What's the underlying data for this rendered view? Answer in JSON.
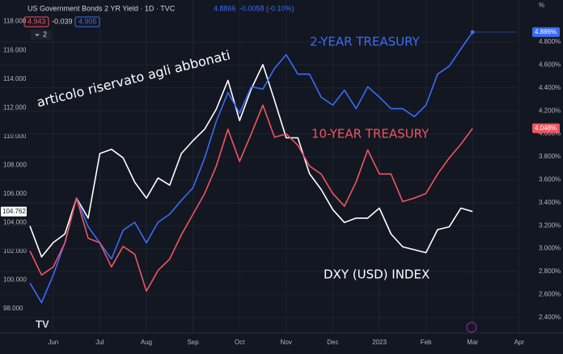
{
  "header": {
    "title": "US Government Bonds 2 YR Yield · 1D · TVC",
    "price": "4.8866",
    "change": "-0.0058 (-0.10%)",
    "bid": "4.943",
    "spread": "-0.039",
    "ask": "4.905",
    "indicators": "2"
  },
  "chart_data": {
    "type": "line",
    "annotations": [
      "2-YEAR TREASURY",
      "10-YEAR TREASURY",
      "DXY (USD) INDEX",
      "articolo riservato agli abbonati"
    ],
    "categories": [
      null,
      null,
      "Jun",
      null,
      null,
      null,
      "Jul",
      null,
      null,
      null,
      "Aug",
      null,
      null,
      null,
      "Sep",
      null,
      null,
      null,
      "Oct",
      null,
      null,
      null,
      "Nov",
      null,
      null,
      null,
      "Dec",
      null,
      null,
      null,
      "2023",
      null,
      null,
      null,
      "Feb",
      null,
      null,
      null,
      "Mar",
      null,
      null,
      null,
      "Apr"
    ],
    "series": [
      {
        "name": "DXY (USD) INDEX",
        "color": "#ffffff",
        "axis": "y",
        "values": [
          103.75,
          101.6,
          102.6,
          103.2,
          105.7,
          104.3,
          108.8,
          109.1,
          108.5,
          106.8,
          105.7,
          107.1,
          106.6,
          108.8,
          109.7,
          110.5,
          111.9,
          113.9,
          111.1,
          113.3,
          115.0,
          112.5,
          109.9,
          109.9,
          107.4,
          106.3,
          104.9,
          104.0,
          104.3,
          104.3,
          105.0,
          103.2,
          102.3,
          102.1,
          101.9,
          103.5,
          103.7,
          105.0,
          104.762,
          null,
          null,
          null,
          null
        ],
        "value_labels": [
          null,
          null,
          null,
          null,
          null,
          null,
          null,
          null,
          null,
          null,
          null,
          null,
          null,
          null,
          null,
          null,
          null,
          null,
          null,
          null,
          null,
          null,
          null,
          null,
          null,
          null,
          null,
          null,
          null,
          null,
          null,
          null,
          null,
          null,
          null,
          null,
          null,
          null,
          "104.762",
          null,
          null,
          null,
          null
        ]
      },
      {
        "name": "2-YEAR TREASURY",
        "color": "#3b6cf5",
        "axis": "y2",
        "values": [
          2.7,
          2.53,
          2.77,
          3.05,
          3.44,
          3.19,
          3.05,
          2.91,
          3.16,
          3.23,
          3.05,
          3.23,
          3.3,
          3.42,
          3.53,
          3.79,
          4.11,
          4.36,
          4.18,
          4.41,
          4.39,
          4.57,
          4.69,
          4.52,
          4.52,
          4.32,
          4.25,
          4.38,
          4.22,
          4.41,
          4.32,
          4.22,
          4.22,
          4.15,
          4.25,
          4.52,
          4.59,
          4.74,
          4.886,
          null,
          null,
          null,
          null
        ],
        "value_labels": [
          null,
          null,
          null,
          null,
          null,
          null,
          null,
          null,
          null,
          null,
          null,
          null,
          null,
          null,
          null,
          null,
          null,
          null,
          null,
          null,
          null,
          null,
          null,
          null,
          null,
          null,
          null,
          null,
          null,
          null,
          null,
          null,
          null,
          null,
          null,
          null,
          null,
          null,
          "4.886%",
          null,
          null,
          null,
          null
        ]
      },
      {
        "name": "10-YEAR TREASURY",
        "color": "#ef5560",
        "axis": "y2",
        "values": [
          2.98,
          2.77,
          2.84,
          3.05,
          3.44,
          3.09,
          3.05,
          2.84,
          3.02,
          2.95,
          2.63,
          2.81,
          2.91,
          3.12,
          3.3,
          3.48,
          3.72,
          4.04,
          3.76,
          4.0,
          4.25,
          3.97,
          4.0,
          3.9,
          3.72,
          3.65,
          3.48,
          3.37,
          3.58,
          3.86,
          3.65,
          3.65,
          3.41,
          3.44,
          3.48,
          3.65,
          3.79,
          3.91,
          4.048,
          null,
          null,
          null,
          null
        ],
        "value_labels": [
          null,
          null,
          null,
          null,
          null,
          null,
          null,
          null,
          null,
          null,
          null,
          null,
          null,
          null,
          null,
          null,
          null,
          null,
          null,
          null,
          null,
          null,
          null,
          null,
          null,
          null,
          null,
          null,
          null,
          null,
          null,
          null,
          null,
          null,
          null,
          null,
          null,
          null,
          "4.048%",
          null,
          null,
          null,
          null
        ]
      }
    ],
    "ylim": [
      96.3,
      119.5
    ],
    "yticks": [
      {
        "value": 98,
        "label": "98.000"
      },
      {
        "value": 100,
        "label": "100.000"
      },
      {
        "value": 102,
        "label": "102.000"
      },
      {
        "value": 104,
        "label": "104.000"
      },
      {
        "value": 106,
        "label": "106.000"
      },
      {
        "value": 108,
        "label": "108.000"
      },
      {
        "value": 110,
        "label": "110.000"
      },
      {
        "value": 112,
        "label": "112.000"
      },
      {
        "value": 114,
        "label": "114.000"
      },
      {
        "value": 116,
        "label": "116.000"
      },
      {
        "value": 118,
        "label": "118.000"
      }
    ],
    "y2lim": [
      2.265,
      5.166
    ],
    "y2_unit": "%",
    "y2ticks": [
      {
        "value": 2.4,
        "label": "2.400%"
      },
      {
        "value": 2.6,
        "label": "2.600%"
      },
      {
        "value": 2.8,
        "label": "2.800%"
      },
      {
        "value": 3.0,
        "label": "3.000%"
      },
      {
        "value": 3.2,
        "label": "3.200%"
      },
      {
        "value": 3.4,
        "label": "3.400%"
      },
      {
        "value": 3.6,
        "label": "3.600%"
      },
      {
        "value": 3.8,
        "label": "3.800%"
      },
      {
        "value": 4.0,
        "label": "4.000%"
      },
      {
        "value": 4.2,
        "label": "4.200%"
      },
      {
        "value": 4.4,
        "label": "4.400%"
      },
      {
        "value": 4.6,
        "label": "4.600%"
      },
      {
        "value": 4.8,
        "label": "4.800%"
      }
    ],
    "grid": true
  }
}
